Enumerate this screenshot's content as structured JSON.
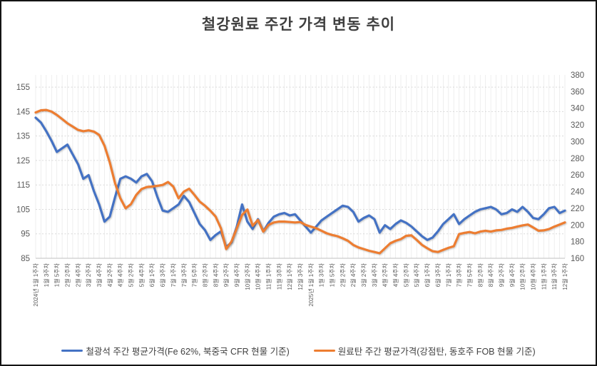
{
  "title": "철강원료 주간 가격 변동 추이",
  "colors": {
    "iron_ore_line": "#4472C4",
    "coking_coal_line": "#ED7D31",
    "title_text": "#3F3F3F",
    "axis_text": "#595959",
    "gridline": "#D9D9D9",
    "category_stripe": "#E7E7E7"
  },
  "legend": {
    "items": [
      {
        "label": "철광석 주간 평균가격(Fe 62%, 북중국 CFR 현물 기준)",
        "color": "#4472C4"
      },
      {
        "label": "원료탄 주간 평균가격(강점탄, 동호주 FOB 현물 기준)",
        "color": "#ED7D31"
      }
    ]
  },
  "chart_data": {
    "type": "line",
    "title": "철강원료 주간 가격 변동 추이",
    "grid": {
      "horizontal": "dashed",
      "vertical_category_stripes": true
    },
    "legend_position": "bottom",
    "label_interval": 2,
    "left_axis": {
      "min": 85,
      "max": 160,
      "ticks": [
        155,
        145,
        135,
        125,
        115,
        105,
        95,
        85
      ]
    },
    "right_axis": {
      "min": 160,
      "max": 380,
      "ticks": [
        380,
        360,
        340,
        320,
        300,
        280,
        260,
        240,
        220,
        200,
        180,
        160
      ]
    },
    "x_tick_labels": [
      "2024년 1월 1주차",
      "1월 3주차",
      "1월 5주차",
      "2월 2주차",
      "2월 4주차",
      "3월 2주차",
      "3월 4주차",
      "4월 2주차",
      "4월 4주차",
      "5월 2주차",
      "5월 4주차",
      "6월 1주차",
      "6월 3주차",
      "7월 1주차",
      "7월 3주차",
      "7월 5주차",
      "8월 2주차",
      "8월 4주차",
      "9월 2주차",
      "9월 4주차",
      "10월 2주차",
      "10월 4주차",
      "11월 1주차",
      "11월 3주차",
      "12월 1주차",
      "12월 3주차",
      "2025년 1월 1주차",
      "1월 3주차",
      "1월 5주차",
      "2월 2주차",
      "2월 4주차",
      "3월 2주차",
      "3월 4주차",
      "4월 2주차",
      "4월 4주차",
      "5월 2주차",
      "5월 4주차",
      "6월 1주차",
      "6월 3주차",
      "7월 1주차",
      "7월 3주차",
      "7월 5주차",
      "8월 2주차",
      "8월 4주차",
      "9월 2주차",
      "9월 4주차",
      "10월 2주차",
      "10월 4주차",
      "11월 1주차",
      "11월 3주차",
      "12월 1주차"
    ],
    "series": [
      {
        "name": "철광석 주간 평균가격(Fe 62%, 북중국 CFR 현물 기준)",
        "axis": "left",
        "color": "#4472C4",
        "values": [
          142.5,
          140.5,
          137,
          133,
          128.5,
          130,
          131.5,
          127.5,
          123.5,
          117.5,
          119,
          112.5,
          107,
          100,
          102,
          110,
          117.5,
          118.5,
          117.5,
          116,
          118.5,
          119.5,
          116.5,
          110,
          104.5,
          104,
          105.5,
          107,
          110.5,
          108,
          103.5,
          99,
          96.5,
          92.5,
          94.5,
          96,
          89.5,
          91.5,
          98,
          107,
          100,
          97,
          101,
          96,
          99.5,
          102,
          103,
          103.5,
          102.5,
          103,
          100.5,
          98,
          95.5,
          98,
          100.5,
          102,
          103.5,
          105,
          106.5,
          106,
          104,
          100,
          101.5,
          102.5,
          101,
          95.5,
          98.5,
          97,
          99,
          100.5,
          99.5,
          98,
          96,
          94,
          92.5,
          93.5,
          96,
          99,
          101,
          103,
          99,
          101,
          102.5,
          104,
          105,
          105.5,
          106,
          105,
          103,
          103.5,
          105,
          104,
          106,
          104,
          101.5,
          101,
          103,
          105.5,
          106,
          103.5,
          104.5
        ]
      },
      {
        "name": "원료탄 주간 평균가격(강점탄, 동호주 FOB 현물 기준)",
        "axis": "right",
        "color": "#ED7D31",
        "values": [
          335,
          337.5,
          338,
          336,
          332,
          327,
          322,
          318,
          314,
          312.5,
          313.5,
          312,
          308,
          295,
          275,
          250,
          232,
          220,
          225,
          236,
          243,
          245.5,
          246,
          247,
          248,
          251.5,
          246,
          232,
          240,
          243.5,
          236,
          228,
          223,
          217,
          210,
          196,
          171,
          180,
          196,
          212,
          218.5,
          199,
          206,
          192,
          200,
          203,
          204,
          204,
          203.5,
          203,
          203.5,
          200,
          198,
          196,
          193,
          190,
          188,
          186.5,
          184,
          181,
          176,
          173,
          171,
          169,
          167.5,
          166,
          172,
          178,
          181,
          183,
          187,
          187.5,
          182,
          176,
          172,
          168.5,
          167.5,
          170,
          172.5,
          174.5,
          189,
          190.5,
          191.5,
          190,
          192,
          193,
          192,
          193.5,
          194,
          195.5,
          196.5,
          198,
          199.5,
          200.5,
          197,
          193,
          193.5,
          195,
          198,
          200.5,
          203
        ]
      }
    ]
  }
}
